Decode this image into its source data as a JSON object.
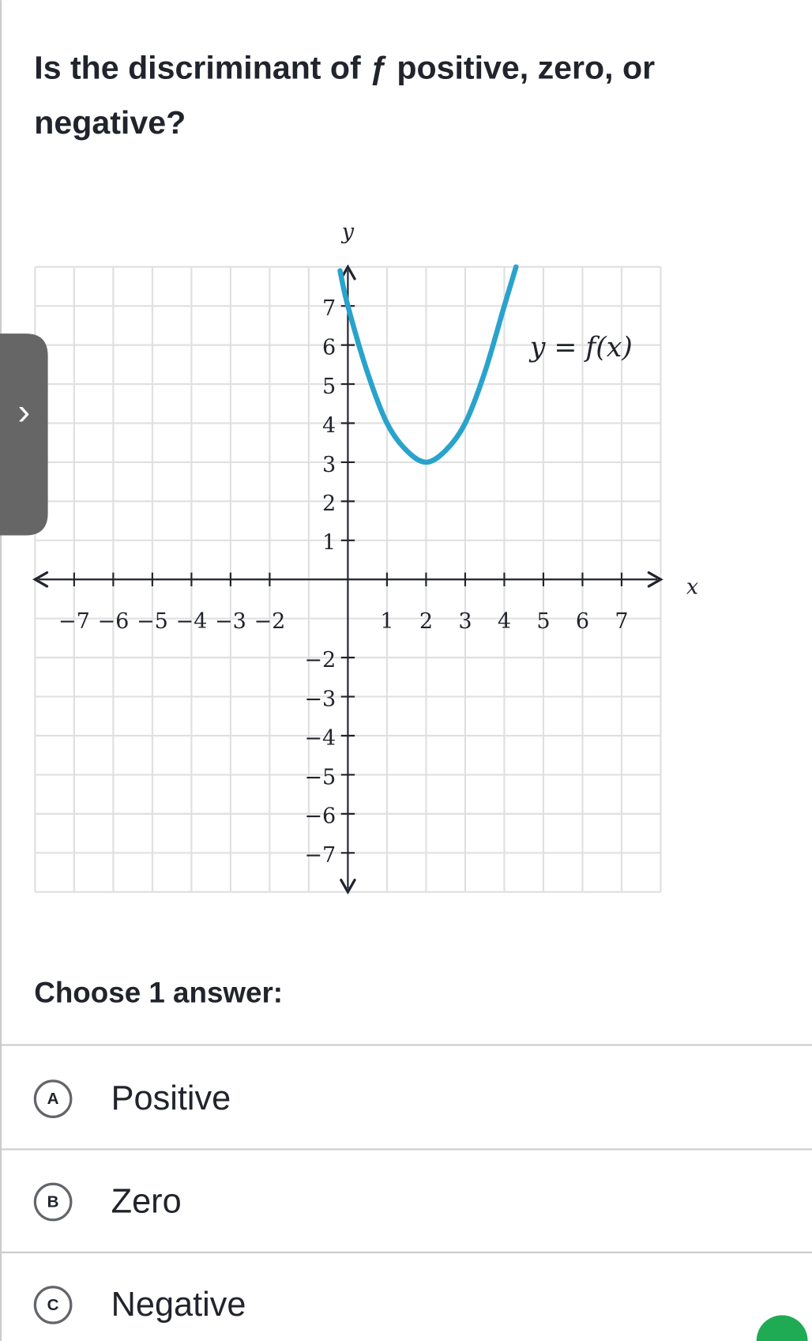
{
  "question": [
    "Is the discriminant of ƒ positive, zero, or",
    "negative?"
  ],
  "graph": {
    "xlim": [
      -8,
      8
    ],
    "ylim": [
      -8,
      8
    ],
    "grid": [
      -8,
      -7,
      -6,
      -5,
      -4,
      -3,
      -2,
      -1,
      0,
      1,
      2,
      3,
      4,
      5,
      6,
      7,
      8
    ],
    "xticks": [
      {
        "value": -7,
        "label": "−7"
      },
      {
        "value": -6,
        "label": "−6"
      },
      {
        "value": -5,
        "label": "−5"
      },
      {
        "value": -4,
        "label": "−4"
      },
      {
        "value": -3,
        "label": "−3"
      },
      {
        "value": -2,
        "label": "−2"
      },
      1,
      2,
      3,
      4,
      5,
      6,
      7
    ],
    "yticks": [
      {
        "value": -7,
        "label": "−7"
      },
      {
        "value": -6,
        "label": "−6"
      },
      {
        "value": -5,
        "label": "−5"
      },
      {
        "value": -4,
        "label": "−4"
      },
      {
        "value": -3,
        "label": "−3"
      },
      {
        "value": -2,
        "label": "−2"
      },
      1,
      2,
      3,
      4,
      5,
      6,
      7
    ],
    "xlabel": "x",
    "ylabel": "y",
    "curve_label": "y = f(x)",
    "curve": {
      "color": "#29a3cc",
      "x": [
        -0.2,
        0,
        0.5,
        1,
        1.5,
        2,
        2.5,
        3,
        3.5,
        4,
        4.3
      ],
      "y": [
        7.9,
        7.0,
        5.3,
        4.0,
        3.3,
        3.0,
        3.3,
        4.0,
        5.3,
        7.0,
        8.0
      ]
    }
  },
  "prompt": "Choose 1 answer:",
  "options": [
    {
      "letter": "A",
      "text": "Positive"
    },
    {
      "letter": "B",
      "text": "Zero"
    },
    {
      "letter": "C",
      "text": "Negative"
    }
  ]
}
